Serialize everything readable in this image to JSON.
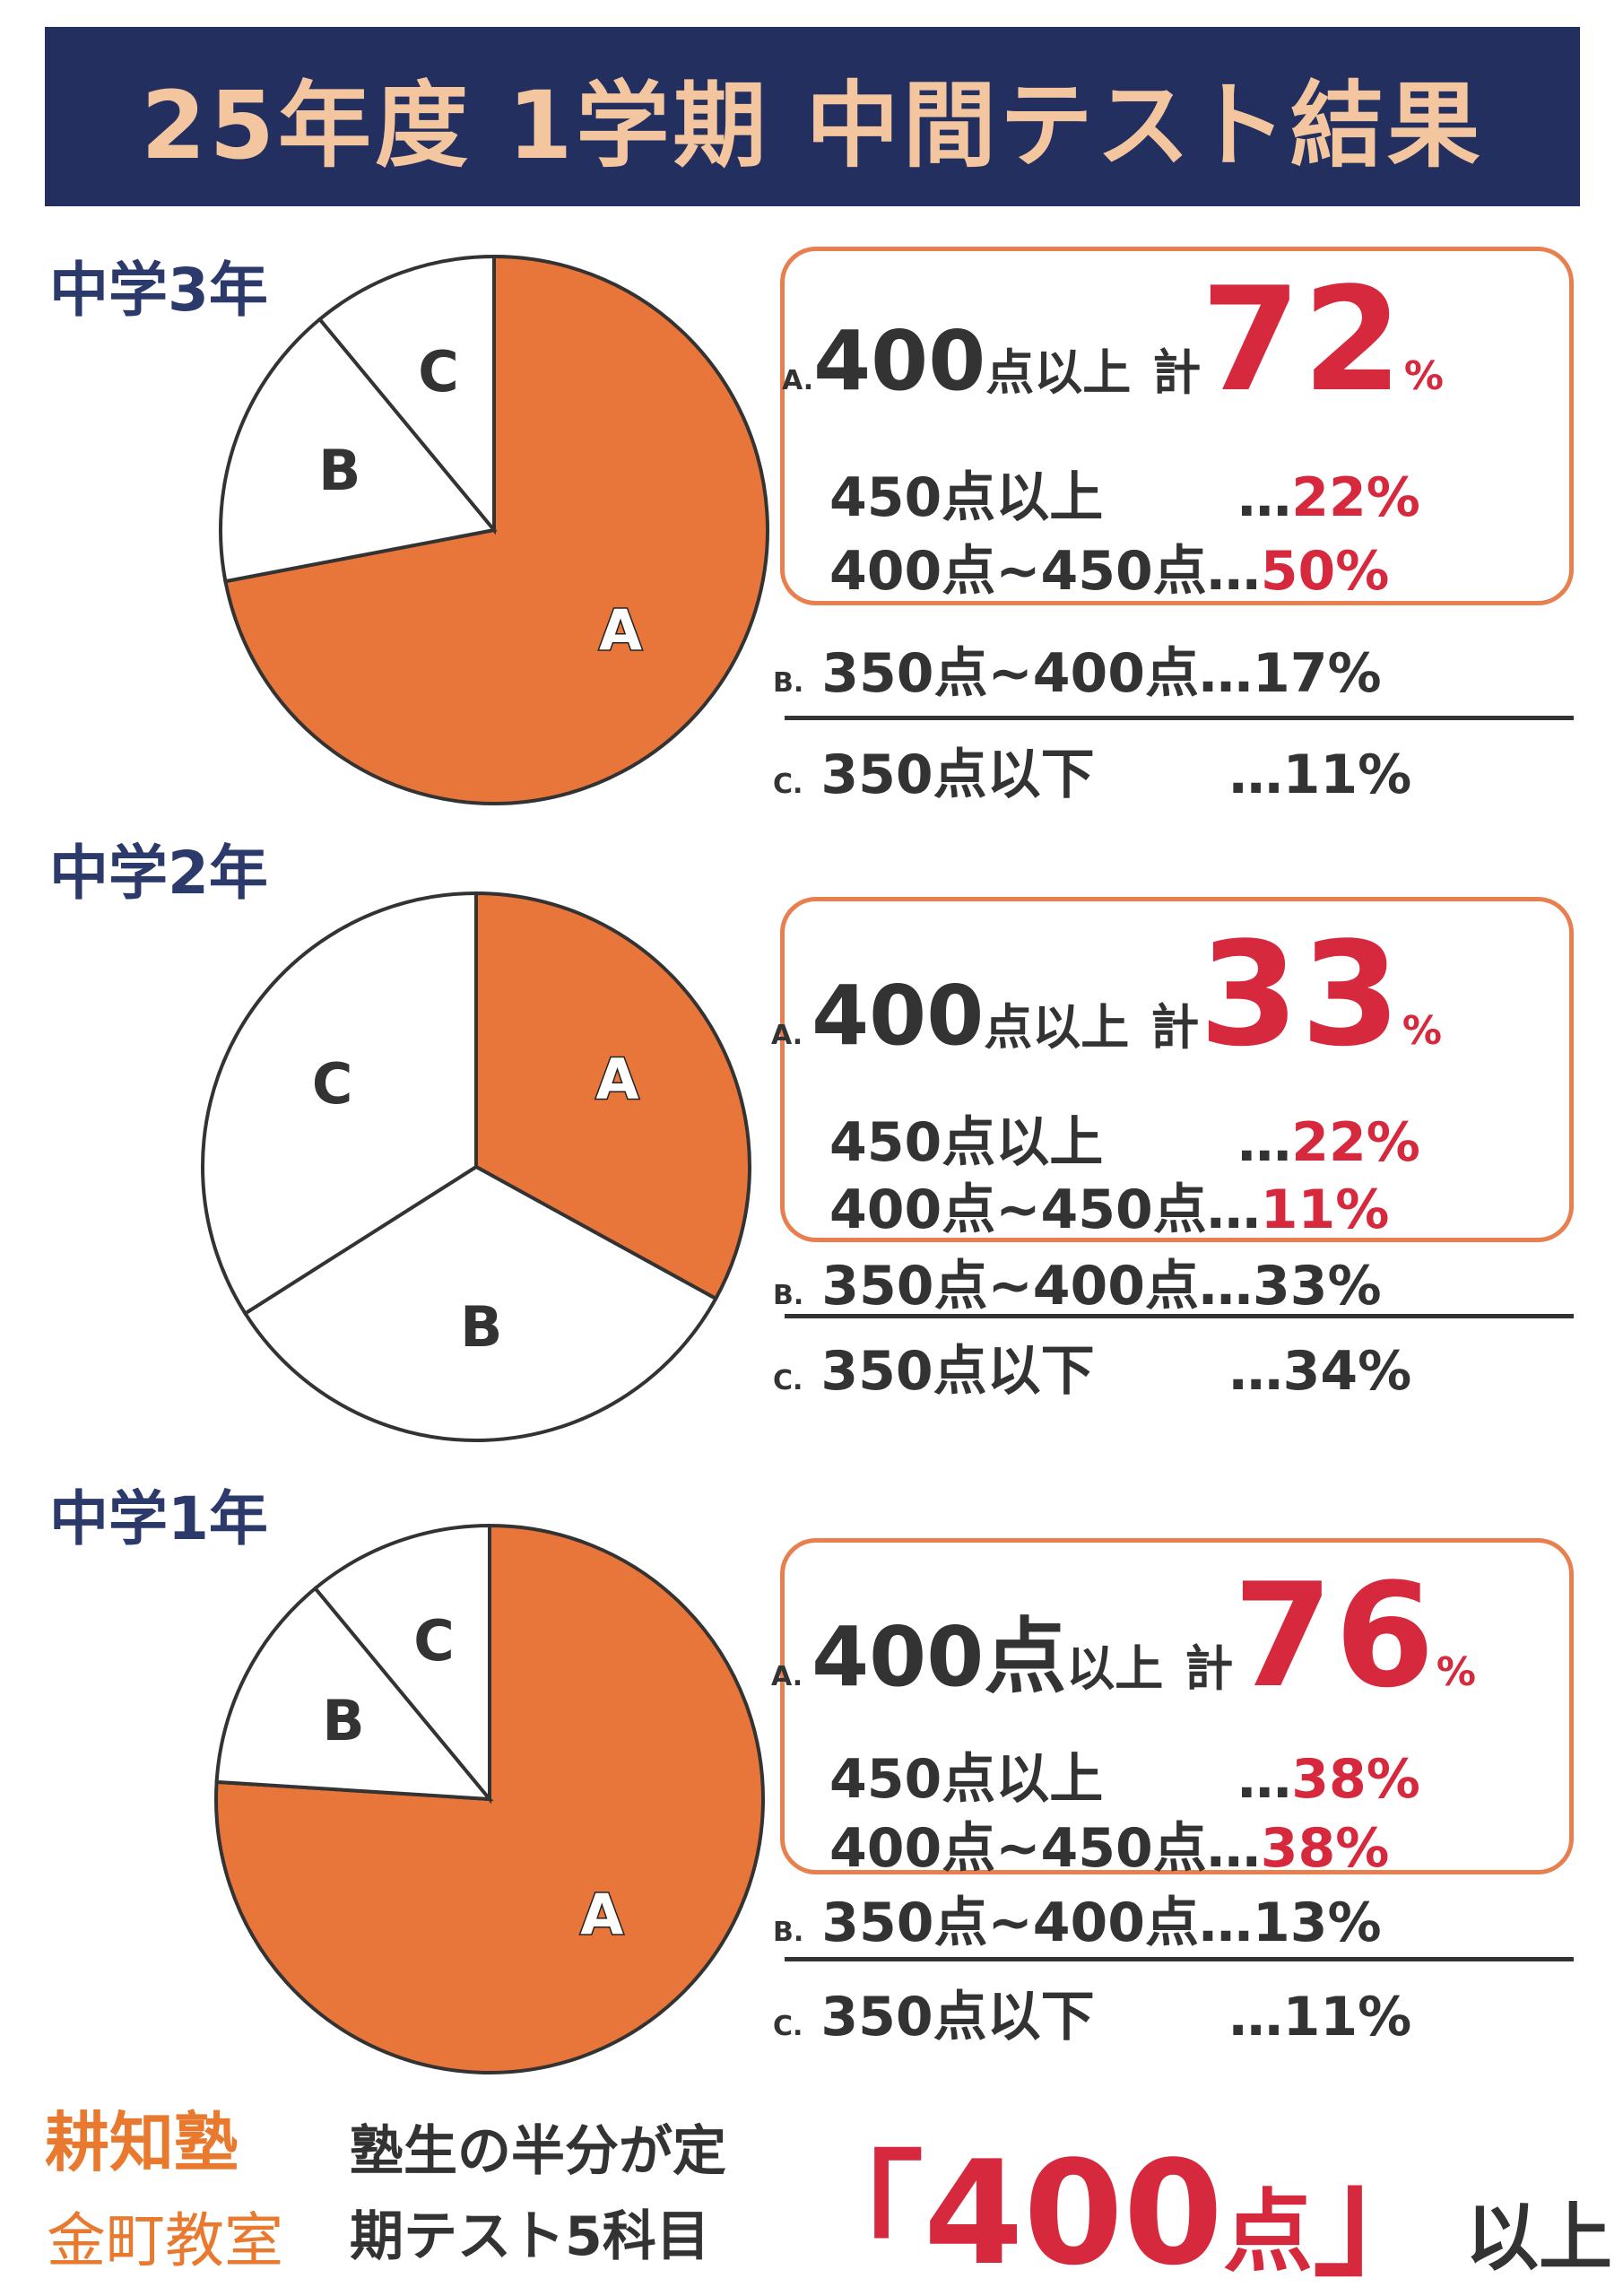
{
  "title": "25年度 1学期 中間テスト結果",
  "colors": {
    "accent": "#e8753a",
    "banner": "#23305f",
    "banner_text": "#f4c6a0",
    "red": "#d6293d",
    "text": "#333333"
  },
  "chart_data": [
    {
      "type": "pie",
      "title": "中学3年",
      "categories": [
        "A",
        "B",
        "C"
      ],
      "values": [
        72,
        17,
        11
      ],
      "colors": [
        "#e8753a",
        "#ffffff",
        "#ffffff"
      ],
      "summary": {
        "a_letter": "A.",
        "a_main": "400",
        "a_unit": "点以上",
        "a_kei": "計",
        "a_total": "72",
        "a_pct": "%",
        "a1_label": "450点以上",
        "a1_dots": "…",
        "a1_value": "22%",
        "a2_label": "400点~450点",
        "a2_dots": "…",
        "a2_value": "50%",
        "b_letter": "B.",
        "b_label": "350点~400点",
        "b_dots": "…",
        "b_value": "17%",
        "c_letter": "C.",
        "c_label": "350点以下",
        "c_dots": "…",
        "c_value": "11%"
      }
    },
    {
      "type": "pie",
      "title": "中学2年",
      "categories": [
        "A",
        "B",
        "C"
      ],
      "values": [
        33,
        33,
        34
      ],
      "colors": [
        "#e8753a",
        "#ffffff",
        "#ffffff"
      ],
      "summary": {
        "a_letter": "A.",
        "a_main": "400",
        "a_unit": "点以上",
        "a_kei": "計",
        "a_total": "33",
        "a_pct": "%",
        "a1_label": "450点以上",
        "a1_dots": "…",
        "a1_value": "22%",
        "a2_label": "400点~450点",
        "a2_dots": "…",
        "a2_value": "11%",
        "b_letter": "B.",
        "b_label": "350点~400点",
        "b_dots": "…",
        "b_value": "33%",
        "c_letter": "C.",
        "c_label": "350点以下",
        "c_dots": "…",
        "c_value": "34%"
      }
    },
    {
      "type": "pie",
      "title": "中学1年",
      "categories": [
        "A",
        "B",
        "C"
      ],
      "values": [
        76,
        13,
        11
      ],
      "colors": [
        "#e8753a",
        "#ffffff",
        "#ffffff"
      ],
      "summary": {
        "a_letter": "A.",
        "a_main": "400点",
        "a_unit": "以上",
        "a_kei": "計",
        "a_total": "76",
        "a_pct": "%",
        "a1_label": "450点以上",
        "a1_dots": "…",
        "a1_value": "38%",
        "a2_label": "400点~450点",
        "a2_dots": "…",
        "a2_value": "38%",
        "b_letter": "B.",
        "b_label": "350点~400点",
        "b_dots": "…",
        "b_value": "13%",
        "c_letter": "C.",
        "c_label": "350点以下",
        "c_dots": "…",
        "c_value": "11%"
      }
    }
  ],
  "footer": {
    "school_name": "耕知塾",
    "branch": "金町教室",
    "slogan_line1": "塾生の半分が定",
    "slogan_line2": "期テスト5科目",
    "headline_open": "「",
    "headline_num": "400",
    "headline_unit": "点",
    "headline_close": "」",
    "headline_suffix": "以上"
  }
}
